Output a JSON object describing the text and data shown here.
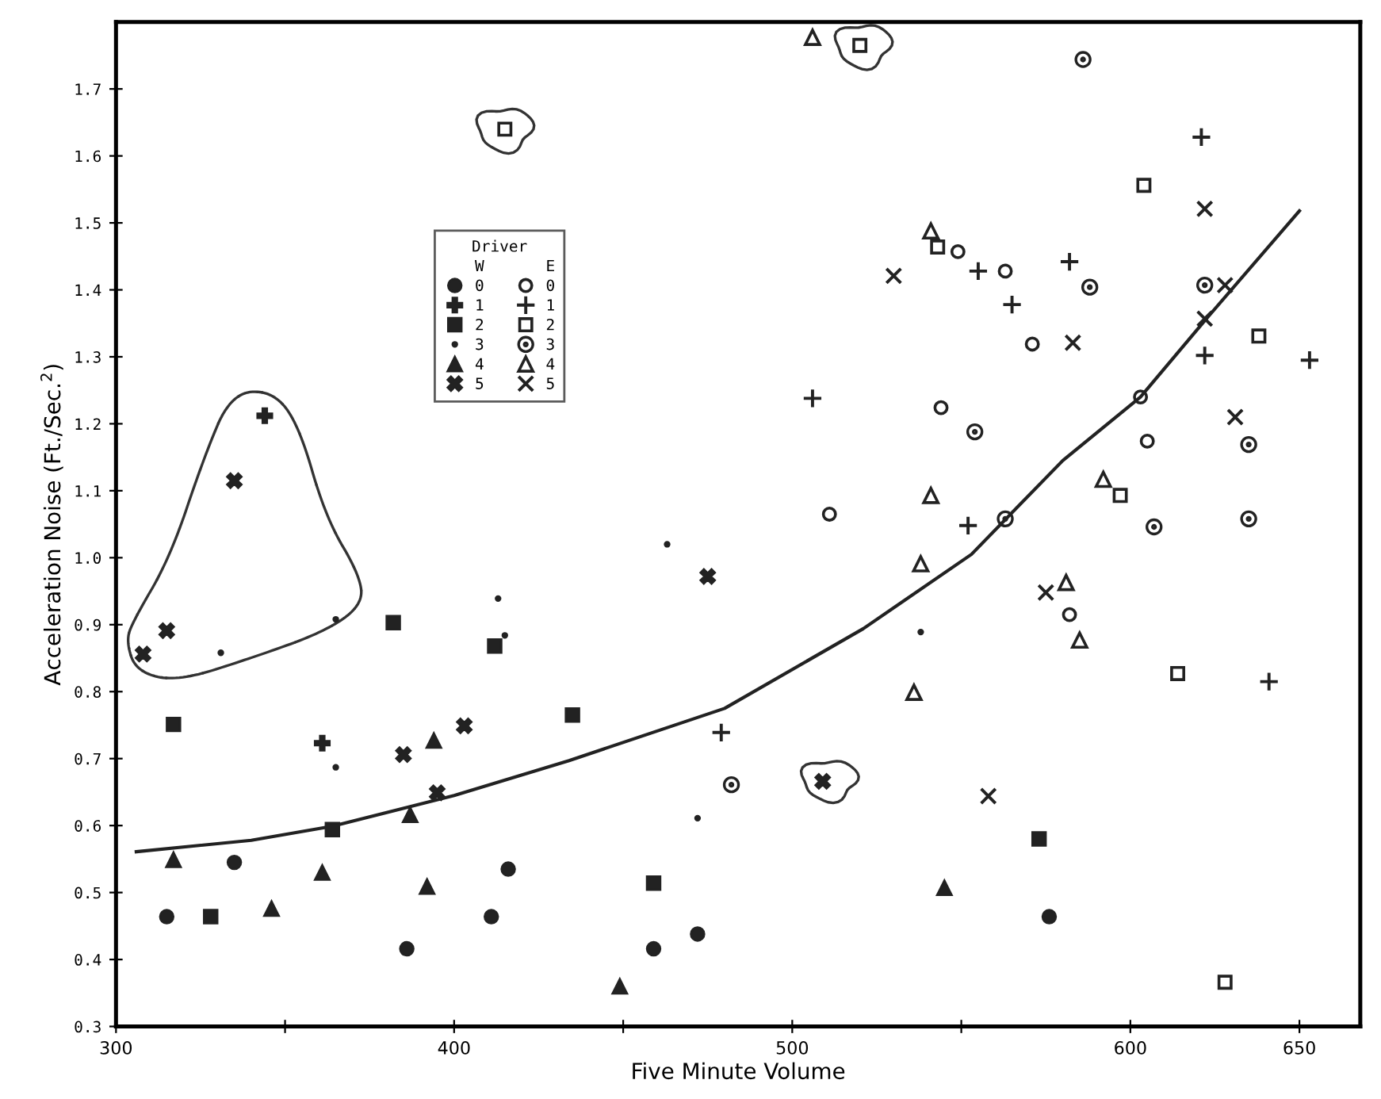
{
  "chart_data": {
    "type": "scatter",
    "xlabel": "Five Minute Volume",
    "ylabel": "Acceleration Noise (Ft./Sec.$^{2}$)",
    "legend_title": "Driver",
    "annotations": [
      "W",
      "E"
    ],
    "legend": "top left",
    "grid": false,
    "xlim": [
      300,
      668
    ],
    "xticks": [
      300,
      {
        "value": 350,
        "label": null
      },
      400,
      {
        "value": 450,
        "label": null
      },
      500,
      {
        "value": 550,
        "label": null
      },
      600,
      650
    ],
    "ylim": [
      0.3,
      1.8
    ],
    "yticks": [
      0.3,
      0.4,
      0.5,
      0.6,
      0.7,
      0.8,
      0.9,
      {
        "value": 1,
        "label": "1.0"
      },
      1.1,
      1.2,
      1.3,
      1.4,
      1.5,
      1.6,
      1.7
    ],
    "series": [
      {
        "name": "0",
        "color": "#222222",
        "marker": "circle",
        "x": [
          315,
          335,
          386,
          411,
          416,
          459,
          472,
          576
        ],
        "values": [
          0.464,
          0.545,
          0.416,
          0.464,
          0.535,
          0.416,
          0.438,
          0.464
        ]
      },
      {
        "name": "1",
        "color": "#222222",
        "marker": "plus",
        "x": [
          344,
          361
        ],
        "values": [
          1.212,
          0.723
        ]
      },
      {
        "name": "2",
        "color": "#222222",
        "marker": "square",
        "x": [
          317,
          328,
          364,
          382,
          412,
          435,
          459,
          573
        ],
        "values": [
          0.751,
          0.464,
          0.594,
          0.903,
          0.868,
          0.765,
          0.514,
          0.58
        ]
      },
      {
        "name": "3",
        "color": "#222222",
        "marker": "dot",
        "x": [
          331,
          365,
          365,
          413,
          415,
          463,
          472,
          538
        ],
        "values": [
          0.858,
          0.908,
          0.687,
          0.939,
          0.884,
          1.02,
          0.611,
          0.889
        ]
      },
      {
        "name": "4",
        "color": "#222222",
        "marker": "triangle",
        "x": [
          317,
          346,
          361,
          387,
          392,
          394,
          449,
          545
        ],
        "values": [
          0.549,
          0.476,
          0.53,
          0.616,
          0.509,
          0.727,
          0.36,
          0.507
        ]
      },
      {
        "name": "5",
        "color": "#222222",
        "marker": "x",
        "x": [
          308,
          315,
          335,
          385,
          395,
          403,
          475,
          509
        ],
        "values": [
          0.856,
          0.891,
          1.115,
          0.706,
          0.649,
          0.749,
          0.972,
          0.666
        ]
      },
      {
        "name": "0",
        "color": "#222222",
        "marker": "circle-open",
        "x": [
          549,
          563,
          544,
          571,
          605,
          603,
          511,
          582
        ],
        "values": [
          1.457,
          1.428,
          1.224,
          1.319,
          1.174,
          1.24,
          1.065,
          0.915
        ]
      },
      {
        "name": "1",
        "color": "#222222",
        "marker": "cross-plus",
        "x": [
          506,
          555,
          582,
          565,
          621,
          622,
          653,
          552,
          479,
          641
        ],
        "values": [
          1.238,
          1.428,
          1.442,
          1.378,
          1.628,
          1.302,
          1.295,
          1.048,
          0.739,
          0.815
        ]
      },
      {
        "name": "2",
        "color": "#222222",
        "marker": "square-open",
        "x": [
          415,
          520,
          543,
          604,
          638,
          597,
          614,
          628
        ],
        "values": [
          1.64,
          1.765,
          1.464,
          1.556,
          1.331,
          1.093,
          0.827,
          0.366
        ]
      },
      {
        "name": "3",
        "color": "#222222",
        "marker": "circle-dot",
        "x": [
          586,
          588,
          622,
          554,
          635,
          607,
          635,
          563,
          482
        ],
        "values": [
          1.744,
          1.404,
          1.407,
          1.188,
          1.169,
          1.046,
          1.058,
          1.058,
          0.661
        ]
      },
      {
        "name": "4",
        "color": "#222222",
        "marker": "triangle-open",
        "x": [
          506,
          541,
          541,
          592,
          538,
          536,
          581,
          585
        ],
        "values": [
          1.777,
          1.488,
          1.093,
          1.117,
          0.991,
          0.799,
          0.963,
          0.877
        ]
      },
      {
        "name": "5",
        "color": "#222222",
        "marker": "cross",
        "x": [
          530,
          622,
          628,
          622,
          583,
          631,
          575,
          558
        ],
        "values": [
          1.421,
          1.521,
          1.407,
          1.357,
          1.321,
          1.21,
          0.948,
          0.644
        ]
      },
      {
        "type": "line",
        "color": "#222222",
        "line_style": "solid",
        "marker": "none",
        "x": [
          306,
          340,
          364,
          400,
          434,
          480,
          521,
          553,
          580,
          603,
          622,
          650
        ],
        "values": [
          0.561,
          0.578,
          0.599,
          0.645,
          0.697,
          0.775,
          0.894,
          1.005,
          1.145,
          1.24,
          1.354,
          1.518
        ]
      }
    ]
  }
}
